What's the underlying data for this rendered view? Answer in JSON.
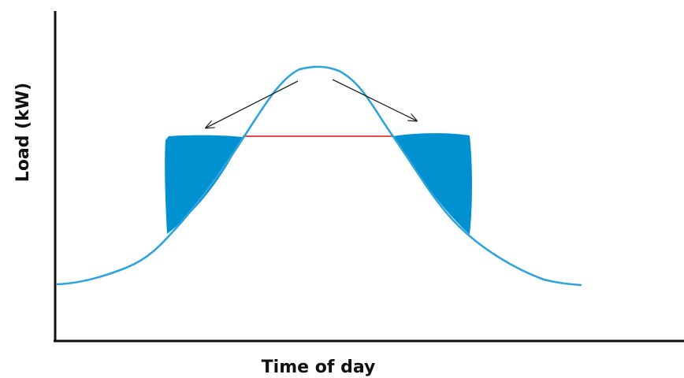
{
  "axes": {
    "x_label": "Time of day",
    "y_label": "Load (kW)"
  },
  "colors": {
    "axis": "#111111",
    "load_curve": "#2ea3dc",
    "shifted_fill": "#0291d0",
    "peak_cap_line": "#e44c5a",
    "arrow": "#222222"
  }
}
